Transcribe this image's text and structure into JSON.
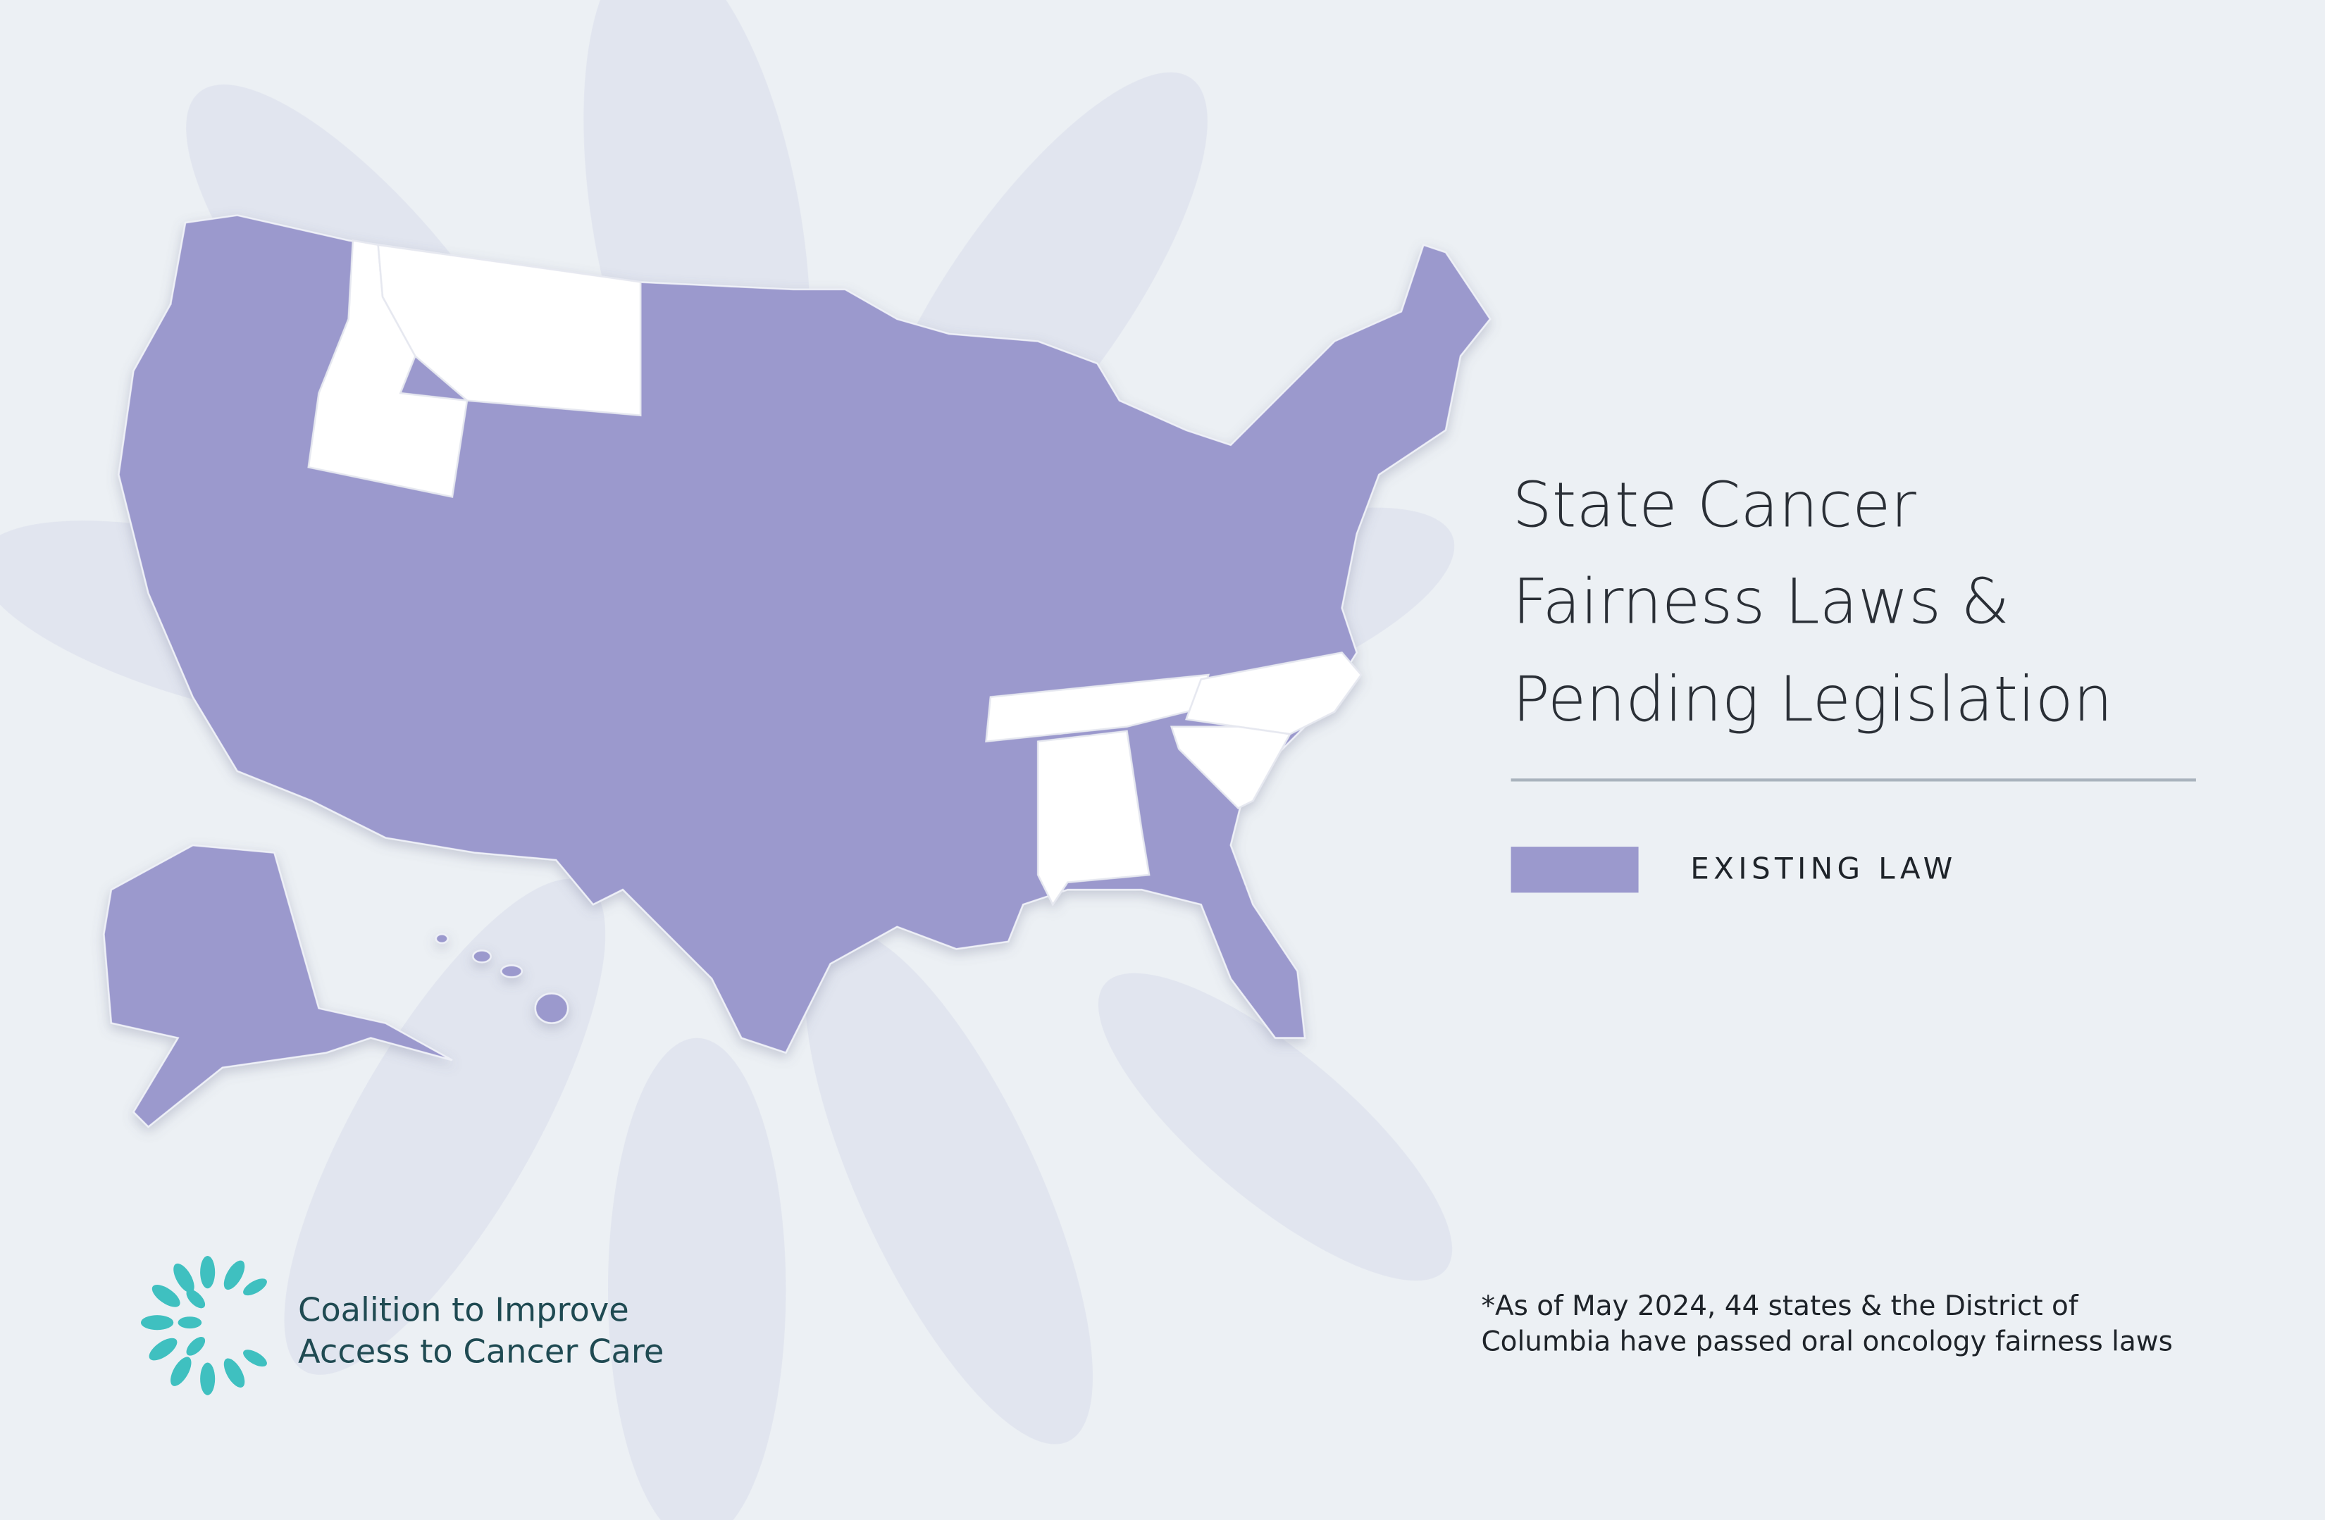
{
  "header": {
    "title_lines": [
      "State Cancer",
      "Fairness Laws &",
      "Pending Legislation"
    ]
  },
  "legend": {
    "items": [
      {
        "label": "EXISTING LAW",
        "color": "#9b99cd"
      }
    ]
  },
  "footnote": {
    "lines": [
      "*As of May 2024, 44 states & the District of",
      "Columbia have passed oral oncology fairness laws"
    ]
  },
  "logo": {
    "lines": [
      "Coalition to Improve",
      "Access to Cancer Care"
    ]
  }
}
